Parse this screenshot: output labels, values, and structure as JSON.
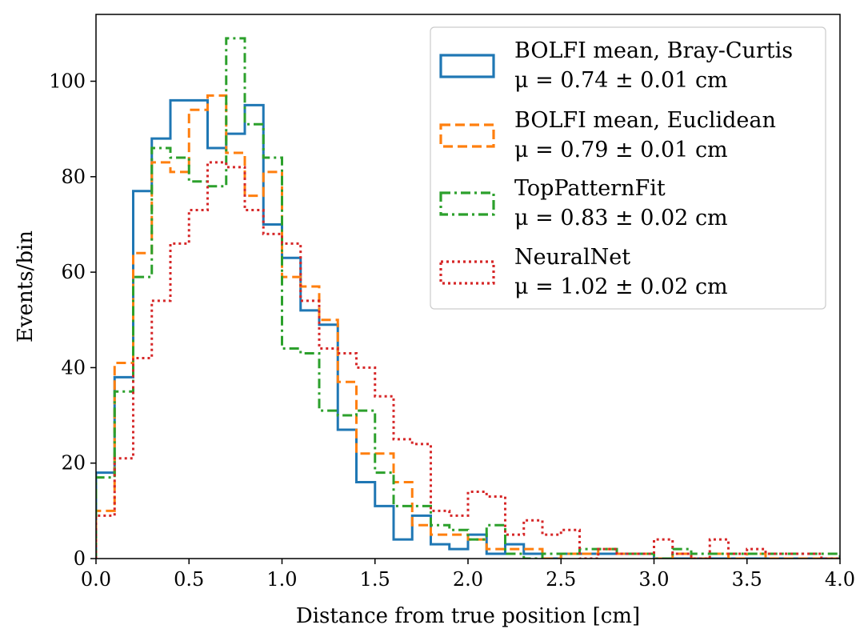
{
  "chart_data": {
    "type": "histogram-step",
    "title": "",
    "xlabel": "Distance from true position [cm]",
    "ylabel": "Events/bin",
    "xlim": [
      0.0,
      4.0
    ],
    "ylim": [
      0,
      114
    ],
    "bin_width": 0.1,
    "xticks": [
      "0.0",
      "0.5",
      "1.0",
      "1.5",
      "2.0",
      "2.5",
      "3.0",
      "3.5",
      "4.0"
    ],
    "xtick_values": [
      0.0,
      0.5,
      1.0,
      1.5,
      2.0,
      2.5,
      3.0,
      3.5,
      4.0
    ],
    "yticks": [
      "0",
      "20",
      "40",
      "60",
      "80",
      "100"
    ],
    "ytick_values": [
      0,
      20,
      40,
      60,
      80,
      100
    ],
    "legend_position": "top-right",
    "series": [
      {
        "name": "BOLFI mean, Bray-Curtis",
        "stat": "μ = 0.74 ± 0.01 cm",
        "color": "#1f77b4",
        "dash": "solid",
        "values": [
          18,
          38,
          77,
          88,
          96,
          96,
          86,
          89,
          95,
          70,
          63,
          52,
          49,
          27,
          16,
          11,
          4,
          9,
          3,
          2,
          5,
          1,
          3,
          1,
          0,
          1,
          1,
          1,
          1,
          1,
          0,
          0,
          0,
          0,
          0,
          0,
          0,
          0,
          0,
          0
        ]
      },
      {
        "name": "BOLFI mean, Euclidean",
        "stat": "μ = 0.79 ± 0.01 cm",
        "color": "#ff7f0e",
        "dash": "dashed",
        "values": [
          10,
          41,
          64,
          83,
          81,
          94,
          97,
          85,
          76,
          81,
          59,
          57,
          50,
          37,
          22,
          22,
          16,
          7,
          5,
          5,
          4,
          2,
          2,
          2,
          0,
          1,
          1,
          2,
          1,
          1,
          0,
          1,
          0,
          1,
          0,
          1,
          0,
          0,
          0,
          0
        ]
      },
      {
        "name": "TopPatternFit",
        "stat": "μ = 0.83 ± 0.02 cm",
        "color": "#2ca02c",
        "dash": "dashdot",
        "values": [
          17,
          35,
          59,
          86,
          84,
          79,
          78,
          109,
          91,
          84,
          44,
          43,
          31,
          30,
          31,
          18,
          11,
          11,
          7,
          6,
          4,
          7,
          1,
          0,
          1,
          1,
          2,
          2,
          1,
          1,
          0,
          2,
          1,
          1,
          1,
          1,
          1,
          1,
          1,
          1
        ]
      },
      {
        "name": "NeuralNet",
        "stat": "μ = 1.02 ± 0.02 cm",
        "color": "#d62728",
        "dash": "dotted",
        "values": [
          9,
          21,
          42,
          54,
          66,
          73,
          83,
          82,
          73,
          68,
          66,
          54,
          44,
          43,
          40,
          34,
          25,
          24,
          10,
          9,
          14,
          13,
          5,
          8,
          5,
          6,
          0,
          2,
          1,
          1,
          4,
          1,
          0,
          4,
          1,
          2,
          1,
          1,
          1,
          0
        ]
      }
    ]
  }
}
